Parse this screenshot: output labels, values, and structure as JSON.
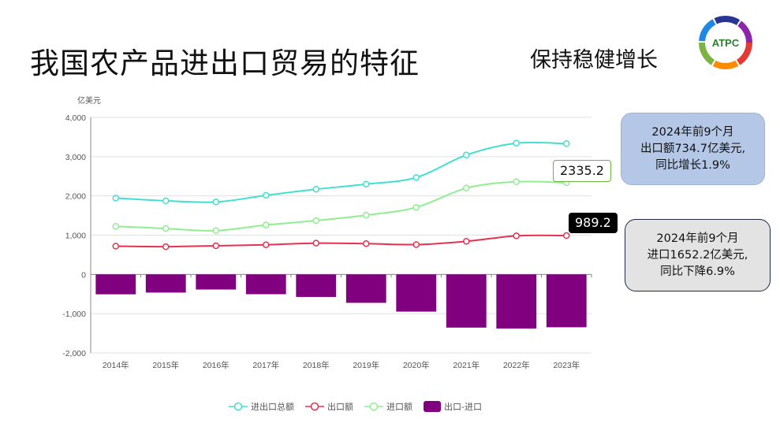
{
  "header": {
    "title": "我国农产品进出口贸易的特征",
    "subtitle": "保持稳健增长",
    "logo_text": "ATPC"
  },
  "notes": {
    "export": [
      "2024年前9个月",
      "出口额734.7亿美元,",
      "同比增长1.9%"
    ],
    "import": [
      "2024年前9个月",
      "进口1652.2亿美元,",
      "同比下降6.9%"
    ]
  },
  "tooltips": {
    "import_2023": "2335.2",
    "export_2023": "989.2"
  },
  "chart_data": {
    "type": "line+bar",
    "ylabel": "亿美元",
    "ylim": [
      -2000,
      4000
    ],
    "yticks": [
      "4,000",
      "3,000",
      "2,000",
      "1,000",
      "0",
      "-1,000",
      "-2,000"
    ],
    "ytick_values": [
      4000,
      3000,
      2000,
      1000,
      0,
      -1000,
      -2000
    ],
    "grid": true,
    "legend_position": "bottom",
    "categories": [
      "2014年",
      "2015年",
      "2016年",
      "2017年",
      "2018年",
      "2019年",
      "2020年",
      "2021年",
      "2022年",
      "2023年"
    ],
    "series": [
      {
        "name": "进出口总额",
        "type": "line",
        "color": "#40e0d0",
        "values": [
          1945,
          1875,
          1845,
          2014,
          2170,
          2300,
          2468,
          3041,
          3343,
          3330
        ]
      },
      {
        "name": "出口额",
        "type": "line",
        "color": "#e8304f",
        "values": [
          719,
          706,
          730,
          755,
          797,
          785,
          760,
          843,
          982,
          989.2
        ]
      },
      {
        "name": "进口额",
        "type": "line",
        "color": "#90ee90",
        "values": [
          1226,
          1169,
          1115,
          1259,
          1371,
          1509,
          1708,
          2198,
          2361,
          2335.2
        ]
      },
      {
        "name": "出口-进口",
        "type": "bar",
        "color": "#800080",
        "values": [
          -507,
          -463,
          -385,
          -504,
          -574,
          -724,
          -948,
          -1355,
          -1379,
          -1346
        ]
      }
    ]
  }
}
